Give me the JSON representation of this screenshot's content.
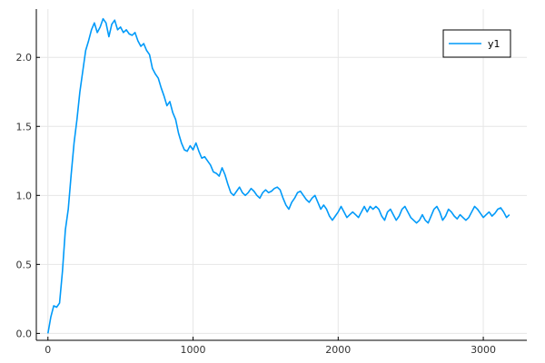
{
  "chart_data": {
    "type": "line",
    "title": "",
    "xlabel": "",
    "ylabel": "",
    "xlim": [
      -80,
      3300
    ],
    "ylim": [
      -0.05,
      2.35
    ],
    "xticks": [
      0,
      1000,
      2000,
      3000
    ],
    "xtick_labels": [
      "0",
      "1000",
      "2000",
      "3000"
    ],
    "yticks": [
      0.0,
      0.5,
      1.0,
      1.5,
      2.0
    ],
    "ytick_labels": [
      "0.0",
      "0.5",
      "1.0",
      "1.5",
      "2.0"
    ],
    "grid": true,
    "legend_position": "top-right",
    "series": [
      {
        "name": "y1",
        "color": "#009af9",
        "points": [
          [
            0,
            0.0
          ],
          [
            20,
            0.12
          ],
          [
            40,
            0.2
          ],
          [
            60,
            0.19
          ],
          [
            80,
            0.22
          ],
          [
            100,
            0.45
          ],
          [
            120,
            0.75
          ],
          [
            140,
            0.9
          ],
          [
            160,
            1.15
          ],
          [
            180,
            1.38
          ],
          [
            200,
            1.55
          ],
          [
            220,
            1.75
          ],
          [
            240,
            1.9
          ],
          [
            260,
            2.05
          ],
          [
            280,
            2.12
          ],
          [
            300,
            2.2
          ],
          [
            320,
            2.25
          ],
          [
            340,
            2.18
          ],
          [
            360,
            2.22
          ],
          [
            380,
            2.28
          ],
          [
            400,
            2.25
          ],
          [
            420,
            2.15
          ],
          [
            440,
            2.24
          ],
          [
            460,
            2.27
          ],
          [
            480,
            2.2
          ],
          [
            500,
            2.22
          ],
          [
            520,
            2.18
          ],
          [
            540,
            2.2
          ],
          [
            560,
            2.17
          ],
          [
            580,
            2.16
          ],
          [
            600,
            2.18
          ],
          [
            620,
            2.12
          ],
          [
            640,
            2.08
          ],
          [
            660,
            2.1
          ],
          [
            680,
            2.05
          ],
          [
            700,
            2.02
          ],
          [
            720,
            1.92
          ],
          [
            740,
            1.88
          ],
          [
            760,
            1.85
          ],
          [
            780,
            1.78
          ],
          [
            800,
            1.72
          ],
          [
            820,
            1.65
          ],
          [
            840,
            1.68
          ],
          [
            860,
            1.6
          ],
          [
            880,
            1.55
          ],
          [
            900,
            1.45
          ],
          [
            920,
            1.38
          ],
          [
            940,
            1.33
          ],
          [
            960,
            1.32
          ],
          [
            980,
            1.36
          ],
          [
            1000,
            1.33
          ],
          [
            1020,
            1.38
          ],
          [
            1040,
            1.32
          ],
          [
            1060,
            1.27
          ],
          [
            1080,
            1.28
          ],
          [
            1100,
            1.25
          ],
          [
            1120,
            1.22
          ],
          [
            1140,
            1.17
          ],
          [
            1160,
            1.16
          ],
          [
            1180,
            1.14
          ],
          [
            1200,
            1.2
          ],
          [
            1220,
            1.15
          ],
          [
            1240,
            1.08
          ],
          [
            1260,
            1.02
          ],
          [
            1280,
            1.0
          ],
          [
            1300,
            1.03
          ],
          [
            1320,
            1.06
          ],
          [
            1340,
            1.02
          ],
          [
            1360,
            1.0
          ],
          [
            1380,
            1.02
          ],
          [
            1400,
            1.05
          ],
          [
            1420,
            1.03
          ],
          [
            1440,
            1.0
          ],
          [
            1460,
            0.98
          ],
          [
            1480,
            1.02
          ],
          [
            1500,
            1.04
          ],
          [
            1520,
            1.02
          ],
          [
            1540,
            1.03
          ],
          [
            1560,
            1.05
          ],
          [
            1580,
            1.06
          ],
          [
            1600,
            1.04
          ],
          [
            1620,
            0.98
          ],
          [
            1640,
            0.93
          ],
          [
            1660,
            0.9
          ],
          [
            1680,
            0.95
          ],
          [
            1700,
            0.98
          ],
          [
            1720,
            1.02
          ],
          [
            1740,
            1.03
          ],
          [
            1760,
            1.0
          ],
          [
            1780,
            0.97
          ],
          [
            1800,
            0.95
          ],
          [
            1820,
            0.98
          ],
          [
            1840,
            1.0
          ],
          [
            1860,
            0.95
          ],
          [
            1880,
            0.9
          ],
          [
            1900,
            0.93
          ],
          [
            1920,
            0.9
          ],
          [
            1940,
            0.85
          ],
          [
            1960,
            0.82
          ],
          [
            1980,
            0.85
          ],
          [
            2000,
            0.88
          ],
          [
            2020,
            0.92
          ],
          [
            2040,
            0.88
          ],
          [
            2060,
            0.84
          ],
          [
            2080,
            0.86
          ],
          [
            2100,
            0.88
          ],
          [
            2120,
            0.86
          ],
          [
            2140,
            0.84
          ],
          [
            2160,
            0.88
          ],
          [
            2180,
            0.92
          ],
          [
            2200,
            0.88
          ],
          [
            2220,
            0.92
          ],
          [
            2240,
            0.9
          ],
          [
            2260,
            0.92
          ],
          [
            2280,
            0.9
          ],
          [
            2300,
            0.85
          ],
          [
            2320,
            0.82
          ],
          [
            2340,
            0.88
          ],
          [
            2360,
            0.9
          ],
          [
            2380,
            0.86
          ],
          [
            2400,
            0.82
          ],
          [
            2420,
            0.85
          ],
          [
            2440,
            0.9
          ],
          [
            2460,
            0.92
          ],
          [
            2480,
            0.88
          ],
          [
            2500,
            0.84
          ],
          [
            2520,
            0.82
          ],
          [
            2540,
            0.8
          ],
          [
            2560,
            0.82
          ],
          [
            2580,
            0.86
          ],
          [
            2600,
            0.82
          ],
          [
            2620,
            0.8
          ],
          [
            2640,
            0.85
          ],
          [
            2660,
            0.9
          ],
          [
            2680,
            0.92
          ],
          [
            2700,
            0.88
          ],
          [
            2720,
            0.82
          ],
          [
            2740,
            0.85
          ],
          [
            2760,
            0.9
          ],
          [
            2780,
            0.88
          ],
          [
            2800,
            0.85
          ],
          [
            2820,
            0.83
          ],
          [
            2840,
            0.86
          ],
          [
            2860,
            0.84
          ],
          [
            2880,
            0.82
          ],
          [
            2900,
            0.84
          ],
          [
            2920,
            0.88
          ],
          [
            2940,
            0.92
          ],
          [
            2960,
            0.9
          ],
          [
            2980,
            0.87
          ],
          [
            3000,
            0.84
          ],
          [
            3020,
            0.86
          ],
          [
            3040,
            0.88
          ],
          [
            3060,
            0.85
          ],
          [
            3080,
            0.87
          ],
          [
            3100,
            0.9
          ],
          [
            3120,
            0.91
          ],
          [
            3140,
            0.88
          ],
          [
            3160,
            0.84
          ],
          [
            3180,
            0.86
          ]
        ]
      }
    ]
  }
}
